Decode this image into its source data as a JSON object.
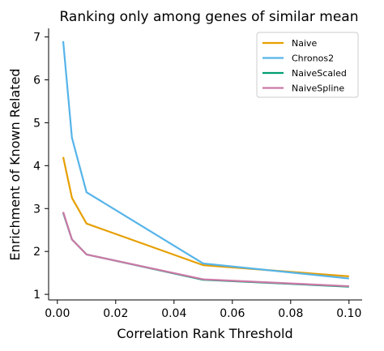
{
  "chart_data": {
    "type": "line",
    "title": "Ranking only among genes of similar mean",
    "xlabel": "Correlation Rank Threshold",
    "ylabel": "Enrichment of Known Related",
    "xlim": [
      -0.003,
      0.1045
    ],
    "ylim": [
      0.87,
      7.2
    ],
    "xticks": [
      0.0,
      0.02,
      0.04,
      0.06,
      0.08,
      0.1
    ],
    "xtick_labels": [
      "0.00",
      "0.02",
      "0.04",
      "0.06",
      "0.08",
      "0.10"
    ],
    "yticks": [
      1,
      2,
      3,
      4,
      5,
      6,
      7
    ],
    "ytick_labels": [
      "1",
      "2",
      "3",
      "4",
      "5",
      "6",
      "7"
    ],
    "grid": false,
    "legend_position": "top-right",
    "x": [
      0.002,
      0.005,
      0.01,
      0.05,
      0.1
    ],
    "series": [
      {
        "name": "Naive",
        "color": "#E69F00",
        "values": [
          4.2,
          3.25,
          2.65,
          1.68,
          1.42
        ]
      },
      {
        "name": "Chronos2",
        "color": "#56B4E9",
        "values": [
          6.9,
          4.65,
          3.38,
          1.72,
          1.37
        ]
      },
      {
        "name": "NaiveScaled",
        "color": "#009E73",
        "values": [
          2.9,
          2.28,
          1.93,
          1.34,
          1.18
        ]
      },
      {
        "name": "NaiveSpline",
        "color": "#CC79A7",
        "values": [
          2.92,
          2.28,
          1.93,
          1.35,
          1.19
        ]
      }
    ]
  }
}
